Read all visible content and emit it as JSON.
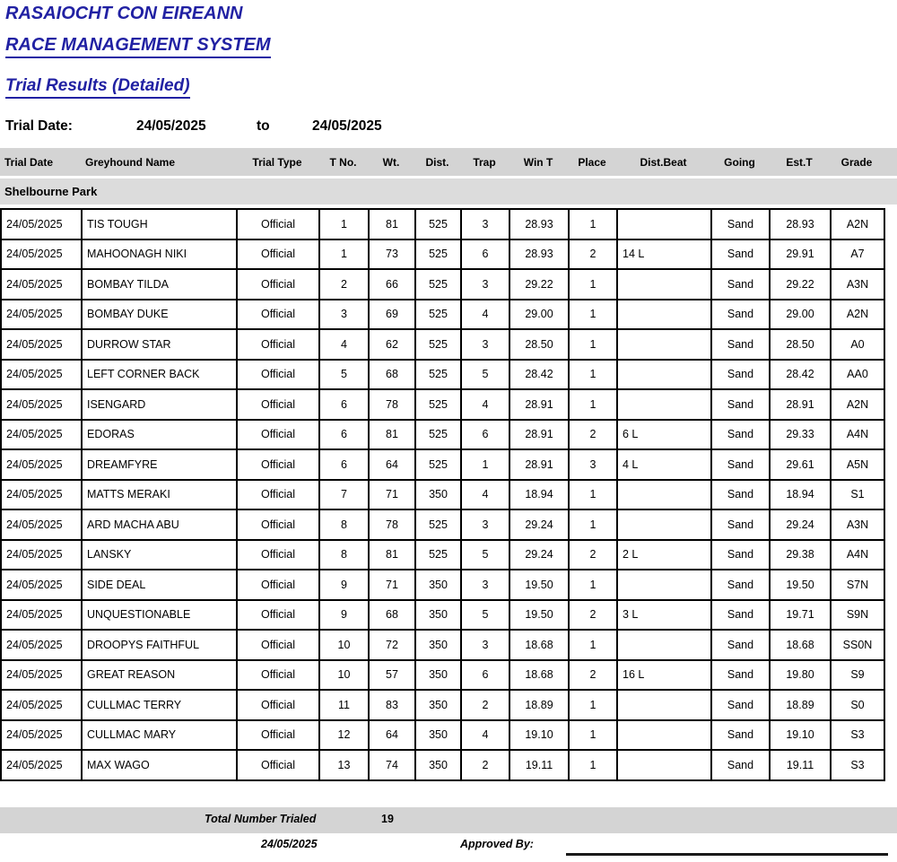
{
  "header": {
    "org_title": "RASAIOCHT CON EIREANN",
    "system_title": "RACE MANAGEMENT SYSTEM",
    "report_title": "Trial Results (Detailed)",
    "trial_date_label": "Trial Date:",
    "date_from": "24/05/2025",
    "to_label": "to",
    "date_to": "24/05/2025"
  },
  "table": {
    "columns": [
      "Trial Date",
      "Greyhound Name",
      "Trial Type",
      "T No.",
      "Wt.",
      "Dist.",
      "Trap",
      "Win T",
      "Place",
      "Dist.Beat",
      "Going",
      "Est.T",
      "Grade"
    ],
    "group": "Shelbourne Park",
    "rows": [
      [
        "24/05/2025",
        "TIS TOUGH",
        "Official",
        "1",
        "81",
        "525",
        "3",
        "28.93",
        "1",
        "",
        "Sand",
        "28.93",
        "A2N"
      ],
      [
        "24/05/2025",
        "MAHOONAGH NIKI",
        "Official",
        "1",
        "73",
        "525",
        "6",
        "28.93",
        "2",
        "14 L",
        "Sand",
        "29.91",
        "A7"
      ],
      [
        "24/05/2025",
        "BOMBAY TILDA",
        "Official",
        "2",
        "66",
        "525",
        "3",
        "29.22",
        "1",
        "",
        "Sand",
        "29.22",
        "A3N"
      ],
      [
        "24/05/2025",
        "BOMBAY DUKE",
        "Official",
        "3",
        "69",
        "525",
        "4",
        "29.00",
        "1",
        "",
        "Sand",
        "29.00",
        "A2N"
      ],
      [
        "24/05/2025",
        "DURROW STAR",
        "Official",
        "4",
        "62",
        "525",
        "3",
        "28.50",
        "1",
        "",
        "Sand",
        "28.50",
        "A0"
      ],
      [
        "24/05/2025",
        "LEFT CORNER BACK",
        "Official",
        "5",
        "68",
        "525",
        "5",
        "28.42",
        "1",
        "",
        "Sand",
        "28.42",
        "AA0"
      ],
      [
        "24/05/2025",
        "ISENGARD",
        "Official",
        "6",
        "78",
        "525",
        "4",
        "28.91",
        "1",
        "",
        "Sand",
        "28.91",
        "A2N"
      ],
      [
        "24/05/2025",
        "EDORAS",
        "Official",
        "6",
        "81",
        "525",
        "6",
        "28.91",
        "2",
        "6 L",
        "Sand",
        "29.33",
        "A4N"
      ],
      [
        "24/05/2025",
        "DREAMFYRE",
        "Official",
        "6",
        "64",
        "525",
        "1",
        "28.91",
        "3",
        "4 L",
        "Sand",
        "29.61",
        "A5N"
      ],
      [
        "24/05/2025",
        "MATTS MERAKI",
        "Official",
        "7",
        "71",
        "350",
        "4",
        "18.94",
        "1",
        "",
        "Sand",
        "18.94",
        "S1"
      ],
      [
        "24/05/2025",
        "ARD MACHA ABU",
        "Official",
        "8",
        "78",
        "525",
        "3",
        "29.24",
        "1",
        "",
        "Sand",
        "29.24",
        "A3N"
      ],
      [
        "24/05/2025",
        "LANSKY",
        "Official",
        "8",
        "81",
        "525",
        "5",
        "29.24",
        "2",
        "2 L",
        "Sand",
        "29.38",
        "A4N"
      ],
      [
        "24/05/2025",
        "SIDE DEAL",
        "Official",
        "9",
        "71",
        "350",
        "3",
        "19.50",
        "1",
        "",
        "Sand",
        "19.50",
        "S7N"
      ],
      [
        "24/05/2025",
        "UNQUESTIONABLE",
        "Official",
        "9",
        "68",
        "350",
        "5",
        "19.50",
        "2",
        "3 L",
        "Sand",
        "19.71",
        "S9N"
      ],
      [
        "24/05/2025",
        "DROOPYS FAITHFUL",
        "Official",
        "10",
        "72",
        "350",
        "3",
        "18.68",
        "1",
        "",
        "Sand",
        "18.68",
        "SS0N"
      ],
      [
        "24/05/2025",
        "GREAT REASON",
        "Official",
        "10",
        "57",
        "350",
        "6",
        "18.68",
        "2",
        "16 L",
        "Sand",
        "19.80",
        "S9"
      ],
      [
        "24/05/2025",
        "CULLMAC TERRY",
        "Official",
        "11",
        "83",
        "350",
        "2",
        "18.89",
        "1",
        "",
        "Sand",
        "18.89",
        "S0"
      ],
      [
        "24/05/2025",
        "CULLMAC MARY",
        "Official",
        "12",
        "64",
        "350",
        "4",
        "19.10",
        "1",
        "",
        "Sand",
        "19.10",
        "S3"
      ],
      [
        "24/05/2025",
        "MAX WAGO",
        "Official",
        "13",
        "74",
        "350",
        "2",
        "19.11",
        "1",
        "",
        "Sand",
        "19.11",
        "S3"
      ]
    ]
  },
  "footer": {
    "total_label": "Total Number Trialed",
    "total_value": "19",
    "report_date": "24/05/2025",
    "approved_by_label": "Approved By:"
  },
  "colors": {
    "title_blue": "#2121a3",
    "band_gray": "#d4d4d4",
    "group_band_gray": "#dcdcdc",
    "border_black": "#000000"
  }
}
